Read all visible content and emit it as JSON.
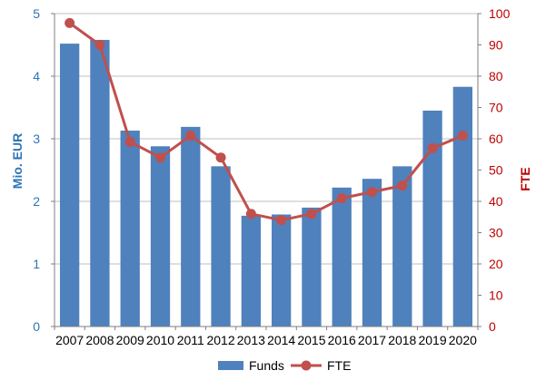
{
  "chart_data": {
    "type": "bar+line",
    "categories": [
      "2007",
      "2008",
      "2009",
      "2010",
      "2011",
      "2012",
      "2013",
      "2014",
      "2015",
      "2016",
      "2017",
      "2018",
      "2019",
      "2020"
    ],
    "series": [
      {
        "name": "Funds",
        "type": "bar",
        "axis": "left",
        "color": "#4f81bd",
        "values": [
          4.52,
          4.58,
          3.13,
          2.88,
          3.19,
          2.56,
          1.77,
          1.79,
          1.9,
          2.22,
          2.36,
          2.56,
          3.45,
          3.83
        ]
      },
      {
        "name": "FTE",
        "type": "line",
        "axis": "right",
        "color": "#c0504d",
        "values": [
          97,
          90,
          59,
          54,
          61,
          54,
          36,
          34,
          36,
          41,
          43,
          45,
          57,
          61
        ]
      }
    ],
    "y_left": {
      "label": "Mio. EUR",
      "color": "#2e75b6",
      "range": [
        0,
        5
      ],
      "ticks": [
        "0",
        "1",
        "2",
        "3",
        "4",
        "5"
      ]
    },
    "y_right": {
      "label": "FTE",
      "color": "#c00000",
      "range": [
        0,
        100
      ],
      "ticks": [
        "0",
        "10",
        "20",
        "30",
        "40",
        "50",
        "60",
        "70",
        "80",
        "90",
        "100"
      ]
    },
    "grid": true,
    "legend": {
      "position": "bottom",
      "items": [
        "Funds",
        "FTE"
      ]
    }
  }
}
